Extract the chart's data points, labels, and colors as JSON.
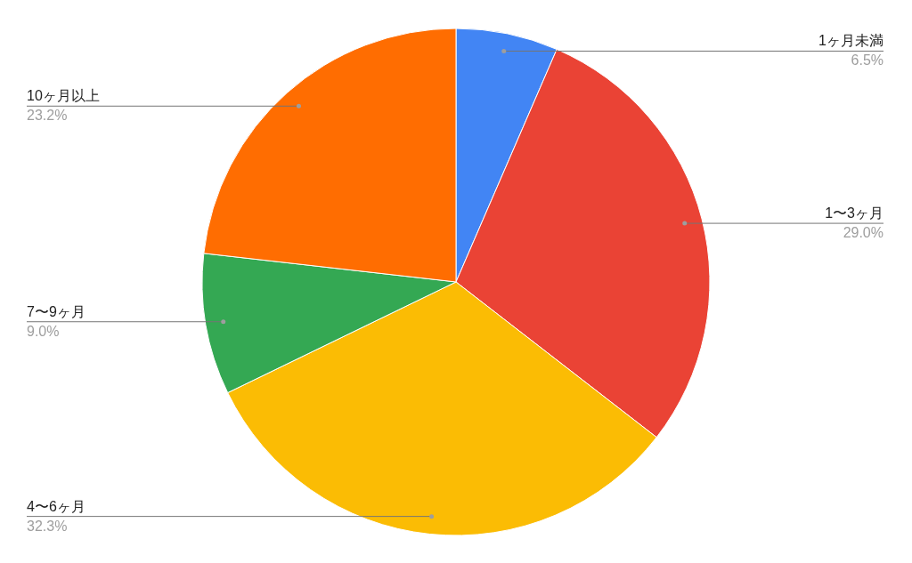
{
  "chart_data": {
    "type": "pie",
    "categories": [
      "1ヶ月未満",
      "1〜3ヶ月",
      "4〜6ヶ月",
      "7〜9ヶ月",
      "10ヶ月以上"
    ],
    "values": [
      6.5,
      29.0,
      32.3,
      9.0,
      23.2
    ],
    "colors": [
      "#4285f4",
      "#ea4335",
      "#fbbc04",
      "#34a853",
      "#ff6d01"
    ],
    "value_labels": [
      "6.5%",
      "29.0%",
      "32.3%",
      "9.0%",
      "23.2%"
    ]
  }
}
